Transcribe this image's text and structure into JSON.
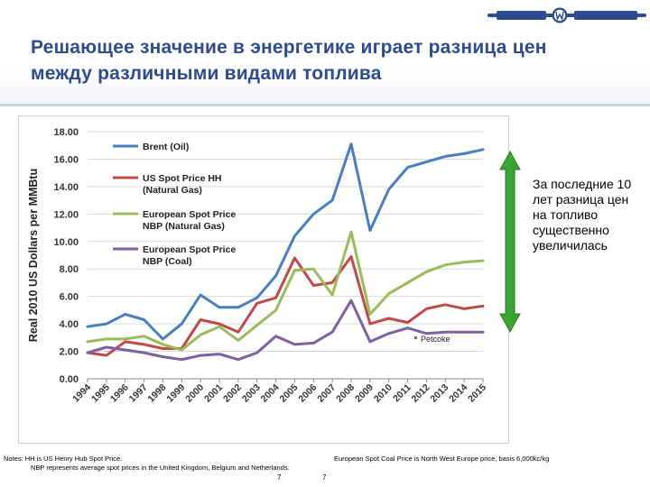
{
  "slide": {
    "title": "Решающее значение в энергетике играет разница цен между различными видами топлива",
    "callout": "За последние 10 лет разница цен на топливо существенно увеличилась",
    "notes_left_line1": "Notes: HH is US Henry Hub Spot Price.",
    "notes_left_line2": "NBP represents average spot prices in the United Kingdom, Belgium and Netherlands.",
    "notes_right": "European Spot Coal Price is North West Europe price, basis 6,000kc/kg",
    "page_number_1": "7",
    "page_number_2": "7",
    "logo_color": "#2e4b8f",
    "arrow_color": "#3aa534"
  },
  "chart_data": {
    "type": "line",
    "ylabel": "Real 2010 US Dollars per MMBtu",
    "xlabel": "",
    "ylim": [
      0,
      18
    ],
    "yticks": [
      "0.00",
      "2.00",
      "4.00",
      "6.00",
      "8.00",
      "10.00",
      "12.00",
      "14.00",
      "16.00",
      "18.00"
    ],
    "grid": "horizontal",
    "legend_position": "top-left",
    "x": [
      "1994",
      "1995",
      "1996",
      "1997",
      "1998",
      "1999",
      "2000",
      "2001",
      "2002",
      "2003",
      "2004",
      "2005",
      "2006",
      "2007",
      "2008",
      "2009",
      "2010",
      "2011",
      "2012",
      "2013",
      "2014",
      "2015"
    ],
    "series": [
      {
        "name": "Brent (Oil)",
        "color": "#4a7ebb",
        "values": [
          3.8,
          4.0,
          4.7,
          4.3,
          2.9,
          4.0,
          6.1,
          5.2,
          5.2,
          5.9,
          7.5,
          10.4,
          12.0,
          13.0,
          17.1,
          10.8,
          13.8,
          15.4,
          15.8,
          16.2,
          16.4,
          16.7
        ]
      },
      {
        "name": "US Spot Price HH (Natural Gas)",
        "color": "#be4b48",
        "values": [
          1.9,
          1.7,
          2.7,
          2.5,
          2.2,
          2.2,
          4.3,
          4.0,
          3.4,
          5.5,
          5.9,
          8.8,
          6.8,
          7.0,
          8.9,
          4.0,
          4.4,
          4.1,
          5.1,
          5.4,
          5.1,
          5.3
        ]
      },
      {
        "name": "European Spot Price NBP (Natural Gas)",
        "color": "#9bbb59",
        "values": [
          2.7,
          2.9,
          2.9,
          3.1,
          2.5,
          2.1,
          3.2,
          3.8,
          2.8,
          3.9,
          5.0,
          7.9,
          8.0,
          6.1,
          10.7,
          4.7,
          6.2,
          7.0,
          7.8,
          8.3,
          8.5,
          8.6
        ]
      },
      {
        "name": "European Spot Price NBP (Coal)",
        "color": "#7d60a0",
        "values": [
          1.9,
          2.3,
          2.1,
          1.9,
          1.6,
          1.4,
          1.7,
          1.8,
          1.4,
          1.9,
          3.1,
          2.5,
          2.6,
          3.4,
          5.7,
          2.7,
          3.3,
          3.7,
          3.3,
          3.4,
          3.4,
          3.4
        ]
      }
    ],
    "legend_lines": [
      [
        "Brent (Oil)"
      ],
      [
        "US Spot Price HH",
        "(Natural Gas)"
      ],
      [
        "European Spot Price",
        "NBP (Natural Gas)"
      ],
      [
        "European Spot Price",
        "NBP (Coal)"
      ]
    ],
    "annotations": [
      {
        "text": "Petcoke",
        "color": "#c0504d"
      }
    ]
  }
}
